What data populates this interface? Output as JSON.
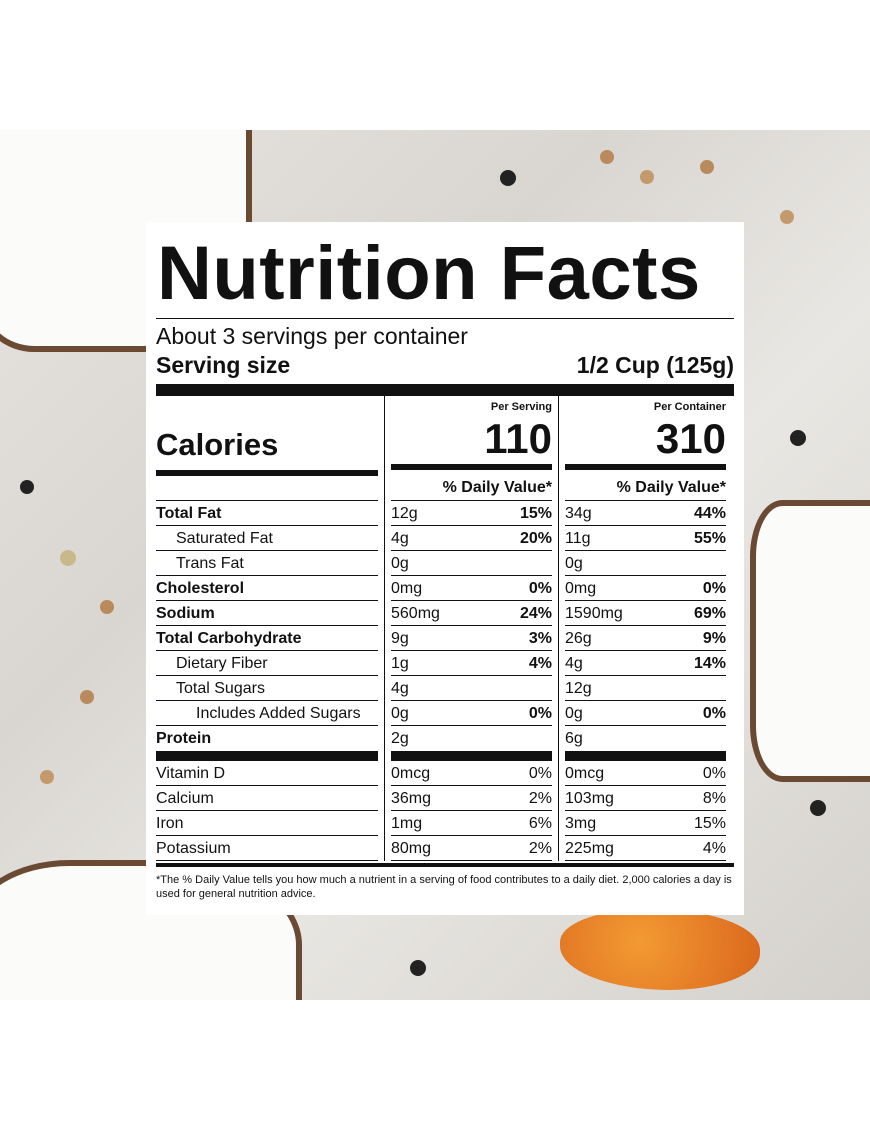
{
  "title": "Nutrition Facts",
  "servings_per_container": "About 3 servings per container",
  "serving_size_label": "Serving size",
  "serving_size_value": "1/2 Cup (125g)",
  "col_headers": {
    "per_serving": "Per Serving",
    "per_container": "Per Container"
  },
  "calories_label": "Calories",
  "calories": {
    "per_serving": "110",
    "per_container": "310"
  },
  "dv_header": "% Daily Value*",
  "nutrients": [
    {
      "name": "Total Fat",
      "s_amt": "12g",
      "s_dv": "15%",
      "c_amt": "34g",
      "c_dv": "44%"
    },
    {
      "name": "Saturated Fat",
      "s_amt": "4g",
      "s_dv": "20%",
      "c_amt": "11g",
      "c_dv": "55%"
    },
    {
      "name": "Trans Fat",
      "s_amt": "0g",
      "s_dv": "",
      "c_amt": "0g",
      "c_dv": ""
    },
    {
      "name": "Cholesterol",
      "s_amt": "0mg",
      "s_dv": "0%",
      "c_amt": "0mg",
      "c_dv": "0%"
    },
    {
      "name": "Sodium",
      "s_amt": "560mg",
      "s_dv": "24%",
      "c_amt": "1590mg",
      "c_dv": "69%"
    },
    {
      "name": "Total Carbohydrate",
      "s_amt": "9g",
      "s_dv": "3%",
      "c_amt": "26g",
      "c_dv": "9%"
    },
    {
      "name": "Dietary Fiber",
      "s_amt": "1g",
      "s_dv": "4%",
      "c_amt": "4g",
      "c_dv": "14%"
    },
    {
      "name": "Total Sugars",
      "s_amt": "4g",
      "s_dv": "",
      "c_amt": "12g",
      "c_dv": ""
    },
    {
      "name": "Includes Added Sugars",
      "s_amt": "0g",
      "s_dv": "0%",
      "c_amt": "0g",
      "c_dv": "0%"
    },
    {
      "name": "Protein",
      "s_amt": "2g",
      "s_dv": "",
      "c_amt": "6g",
      "c_dv": ""
    }
  ],
  "vitamins": [
    {
      "name": "Vitamin D",
      "s_amt": "0mcg",
      "s_dv": "0%",
      "c_amt": "0mcg",
      "c_dv": "0%"
    },
    {
      "name": "Calcium",
      "s_amt": "36mg",
      "s_dv": "2%",
      "c_amt": "103mg",
      "c_dv": "8%"
    },
    {
      "name": "Iron",
      "s_amt": "1mg",
      "s_dv": "6%",
      "c_amt": "3mg",
      "c_dv": "15%"
    },
    {
      "name": "Potassium",
      "s_amt": "80mg",
      "s_dv": "2%",
      "c_amt": "225mg",
      "c_dv": "4%"
    }
  ],
  "footnote": "*The % Daily Value tells you how much a nutrient in a serving of food contributes to a daily diet. 2,000 calories a day is used for general nutrition advice."
}
